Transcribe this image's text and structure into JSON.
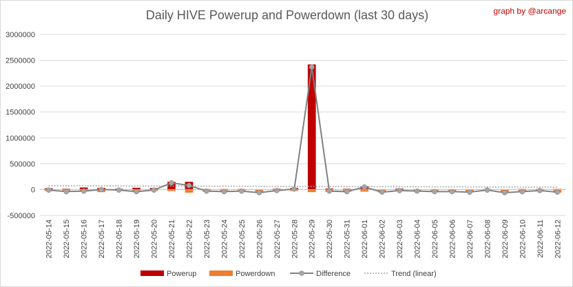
{
  "chart_data": {
    "type": "bar",
    "title": "Daily HIVE Powerup and Powerdown (last 30 days)",
    "credit": "graph by @arcange",
    "ylim": [
      -500000,
      3000000
    ],
    "y_ticks": [
      "-500000",
      "0",
      "500000",
      "1000000",
      "1500000",
      "2000000",
      "2500000",
      "3000000"
    ],
    "grid": true,
    "legend_position": "bottom",
    "categories": [
      "2022-05-14",
      "2022-05-15",
      "2022-05-16",
      "2022-05-17",
      "2022-05-18",
      "2022-05-19",
      "2022-05-20",
      "2022-05-21",
      "2022-05-22",
      "2022-05-23",
      "2022-05-24",
      "2022-05-25",
      "2022-05-26",
      "2022-05-27",
      "2022-05-28",
      "2022-05-29",
      "2022-05-30",
      "2022-05-31",
      "2022-06-01",
      "2022-06-02",
      "2022-06-03",
      "2022-06-04",
      "2022-06-05",
      "2022-06-06",
      "2022-06-07",
      "2022-06-08",
      "2022-06-09",
      "2022-06-10",
      "2022-06-11",
      "2022-06-12"
    ],
    "series": [
      {
        "name": "Powerup",
        "type": "bar",
        "color": "#c00000",
        "values": [
          25000,
          15000,
          40000,
          30000,
          15000,
          35000,
          30000,
          150000,
          150000,
          10000,
          10000,
          10000,
          5000,
          15000,
          30000,
          2420000,
          20000,
          15000,
          60000,
          5000,
          20000,
          5000,
          5000,
          5000,
          5000,
          10000,
          5000,
          10000,
          10000,
          10000
        ]
      },
      {
        "name": "Powerdown",
        "type": "bar",
        "color": "#ed7d31",
        "values": [
          -30000,
          -40000,
          -40000,
          -50000,
          -25000,
          -50000,
          -25000,
          -30000,
          -60000,
          -40000,
          -40000,
          -35000,
          -60000,
          -30000,
          -25000,
          -50000,
          -45000,
          -45000,
          -40000,
          -55000,
          -30000,
          -35000,
          -40000,
          -40000,
          -50000,
          -20000,
          -55000,
          -40000,
          -30000,
          -60000
        ]
      },
      {
        "name": "Difference",
        "type": "line",
        "color": "#808080",
        "marker_color": "#a5a5a5",
        "values": [
          -10000,
          -40000,
          -30000,
          0,
          -10000,
          -40000,
          -10000,
          130000,
          80000,
          -30000,
          -40000,
          -30000,
          -60000,
          -20000,
          10000,
          2370000,
          -30000,
          -40000,
          50000,
          -50000,
          -20000,
          -30000,
          -40000,
          -40000,
          -50000,
          -10000,
          -60000,
          -40000,
          -20000,
          -50000
        ]
      },
      {
        "name": "Trend (linear)",
        "type": "trend",
        "color": "#a5a5a5",
        "values": [
          75000,
          74000,
          73000,
          72000,
          71000,
          70000,
          69000,
          68000,
          67000,
          66000,
          65000,
          64000,
          63000,
          62000,
          61000,
          60000,
          59000,
          58000,
          57000,
          56000,
          55000,
          54000,
          53000,
          52000,
          51000,
          50000,
          49000,
          48000,
          47000,
          46000
        ]
      }
    ]
  }
}
